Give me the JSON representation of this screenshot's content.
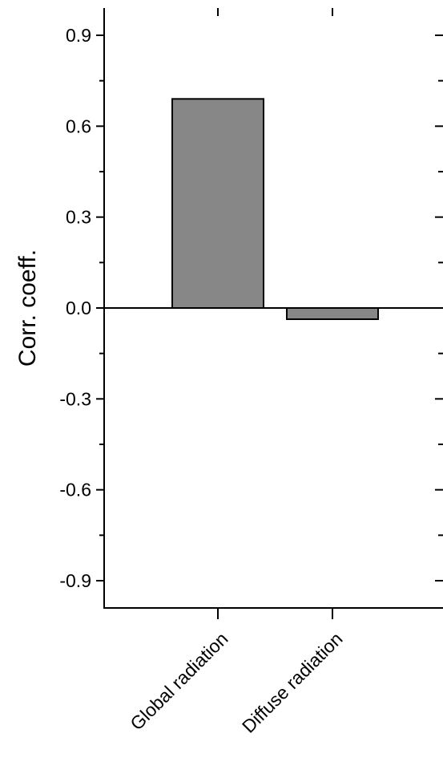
{
  "chart_data": {
    "type": "bar",
    "categories": [
      "Global radiation",
      "Diffuse radiation"
    ],
    "values": [
      0.69,
      -0.037
    ],
    "ylabel": "Corr. coeff.",
    "xlabel": "",
    "ylim": [
      -0.99,
      0.99
    ],
    "yticks": [
      0.9,
      0.6,
      0.3,
      0.0,
      -0.3,
      -0.6,
      -0.9
    ],
    "ytick_labels": [
      "0.9",
      "0.6",
      "0.3",
      "0.0",
      "-0.3",
      "-0.6",
      "-0.9"
    ],
    "y_minor_step": 0.15,
    "grid": false,
    "zero_line": true,
    "bar_color": "#878787",
    "bar_edge_color": "#000000"
  }
}
